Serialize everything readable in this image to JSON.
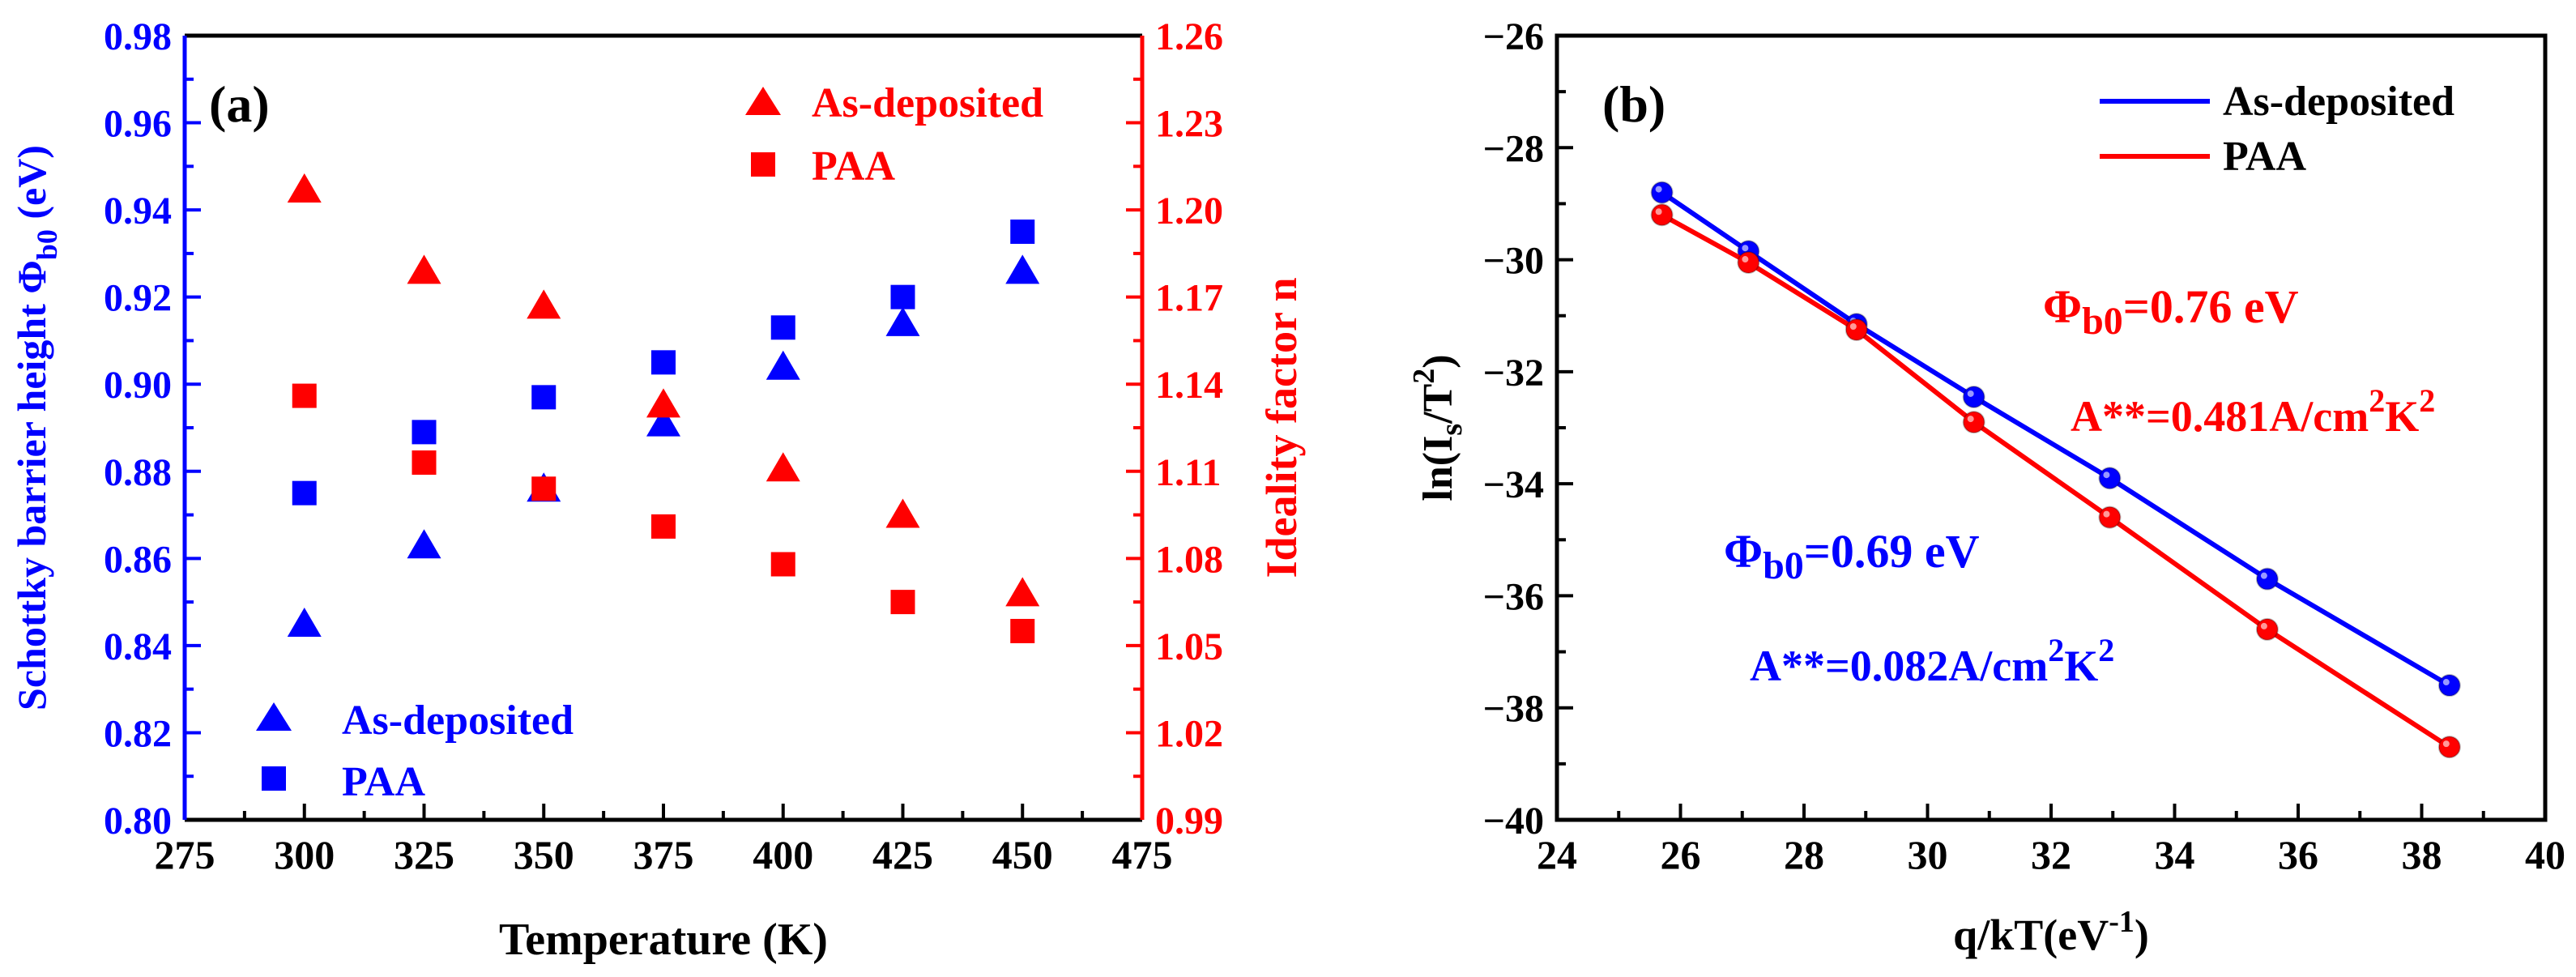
{
  "chart_data": [
    {
      "panel": "(a)",
      "type": "scatter",
      "xlabel": "Temperature (K)",
      "ylabel_left": "Schottky barrier height Φ",
      "ylabel_left_sub": "b0",
      "ylabel_left_tail": " (eV)",
      "ylabel_right": "Ideality factor n",
      "xlim": [
        275,
        475
      ],
      "x_ticks": [
        "275",
        "300",
        "325",
        "350",
        "375",
        "400",
        "425",
        "450",
        "475"
      ],
      "ylim_left": [
        0.8,
        0.98
      ],
      "y_ticks_left": [
        "0.80",
        "0.82",
        "0.84",
        "0.86",
        "0.88",
        "0.90",
        "0.92",
        "0.94",
        "0.96",
        "0.98"
      ],
      "ylim_right": [
        0.99,
        1.26
      ],
      "y_ticks_right": [
        "0.99",
        "1.02",
        "1.05",
        "1.08",
        "1.11",
        "1.14",
        "1.17",
        "1.20",
        "1.23",
        "1.26"
      ],
      "colors": {
        "left": "#0000ff",
        "right": "#ff0000",
        "axis": "#000000"
      },
      "x": [
        300,
        325,
        350,
        375,
        400,
        425,
        450
      ],
      "series": [
        {
          "name": "As-deposited",
          "axis": "left",
          "marker": "triangle",
          "color": "#0000ff",
          "values": [
            0.845,
            0.863,
            0.876,
            0.891,
            0.904,
            0.914,
            0.926
          ]
        },
        {
          "name": "PAA",
          "axis": "left",
          "marker": "square",
          "color": "#0000ff",
          "values": [
            0.875,
            0.889,
            0.897,
            0.905,
            0.913,
            0.92,
            0.935
          ]
        },
        {
          "name": "As-deposited",
          "axis": "right",
          "marker": "triangle",
          "color": "#ff0000",
          "values": [
            1.207,
            1.179,
            1.167,
            1.133,
            1.111,
            1.095,
            1.068
          ]
        },
        {
          "name": "PAA",
          "axis": "right",
          "marker": "square",
          "color": "#ff0000",
          "values": [
            1.136,
            1.113,
            1.104,
            1.091,
            1.078,
            1.065,
            1.055
          ]
        }
      ],
      "legend_right": {
        "as_deposited": "As-deposited",
        "paa": "PAA"
      },
      "legend_left": {
        "as_deposited": "As-deposited",
        "paa": "PAA"
      }
    },
    {
      "panel": "(b)",
      "type": "line",
      "xlabel_pre": "q/kT(eV",
      "xlabel_sup": "-1",
      "xlabel_post": ")",
      "ylabel": "ln(I",
      "ylabel_sub": "s",
      "ylabel_mid": "/T",
      "ylabel_sup": "2",
      "ylabel_post": ")",
      "xlim": [
        24,
        40
      ],
      "x_ticks": [
        "24",
        "26",
        "28",
        "30",
        "32",
        "34",
        "36",
        "38",
        "40"
      ],
      "ylim": [
        -40,
        -26
      ],
      "y_ticks": [
        "−40",
        "−38",
        "−36",
        "−34",
        "−32",
        "−30",
        "−28",
        "−26"
      ],
      "series": [
        {
          "name": "As-deposited",
          "color": "#0000ff",
          "x": [
            25.7,
            27.1,
            28.85,
            30.75,
            32.95,
            35.5,
            38.45
          ],
          "y": [
            -28.8,
            -29.85,
            -31.15,
            -32.45,
            -33.9,
            -35.7,
            -37.6
          ]
        },
        {
          "name": "PAA",
          "color": "#ff0000",
          "x": [
            25.7,
            27.1,
            28.85,
            30.75,
            32.95,
            35.5,
            38.45
          ],
          "y": [
            -29.2,
            -30.05,
            -31.25,
            -32.9,
            -34.6,
            -36.6,
            -38.7
          ]
        }
      ],
      "legend": {
        "as_deposited": "As-deposited",
        "paa": "PAA"
      },
      "annotations": {
        "paa_phi_pre": "Φ",
        "paa_phi_sub": "b0",
        "paa_phi_post": "=0.76 eV",
        "paa_a_pre": "A**=0.481A/cm",
        "paa_a_sup1": "2",
        "paa_a_mid": "K",
        "paa_a_sup2": "2",
        "asdep_phi_pre": "Φ",
        "asdep_phi_sub": "b0",
        "asdep_phi_post": "=0.69 eV",
        "asdep_a_pre": "A**=0.082A/cm",
        "asdep_a_sup1": "2",
        "asdep_a_mid": "K",
        "asdep_a_sup2": "2"
      }
    }
  ]
}
